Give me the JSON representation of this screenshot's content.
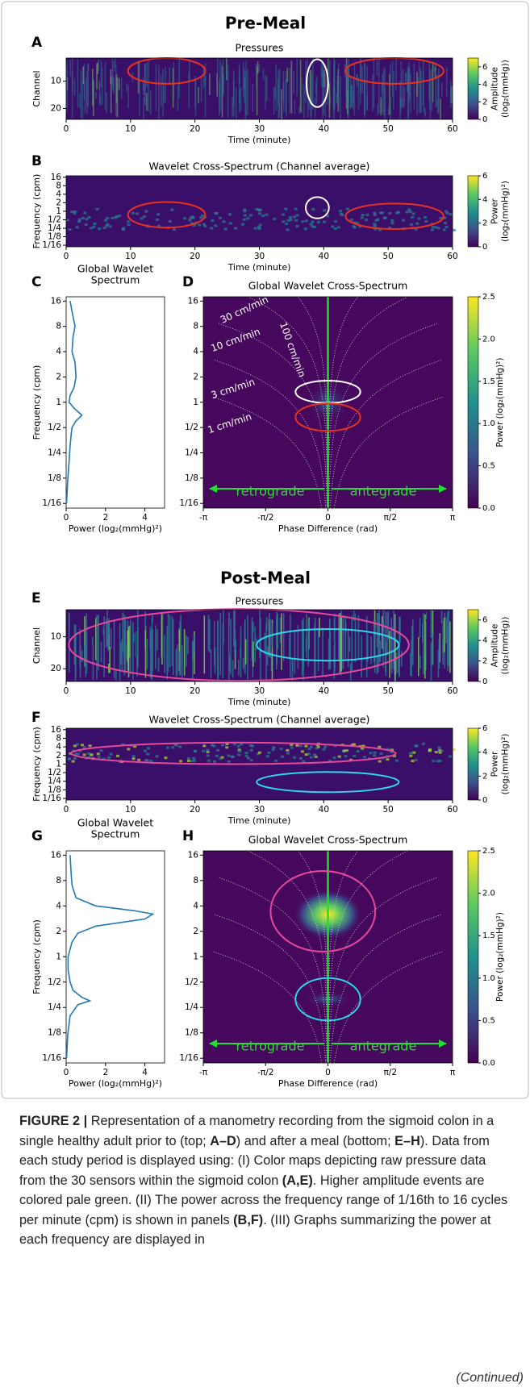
{
  "sections": [
    {
      "title": "Pre-Meal",
      "panels": [
        {
          "letter": "A",
          "type": "heatmap",
          "title": "Pressures",
          "xlabel": "Time (minute)",
          "ylabel": "Channel",
          "xlim": [
            0,
            60
          ],
          "xticks": [
            0,
            10,
            20,
            30,
            40,
            50,
            60
          ],
          "ylim": [
            24,
            1.5
          ],
          "yticks": [
            10,
            20
          ],
          "colorbar": {
            "label": [
              "Amplitude",
              "(log₂(mmHg))"
            ],
            "lim": [
              0,
              7
            ],
            "ticks": [
              0,
              2,
              4,
              6
            ]
          }
        },
        {
          "letter": "B",
          "type": "heatmap",
          "title": "Wavelet Cross-Spectrum (Channel average)",
          "xlabel": "Time (minute)",
          "ylabel": "Frequency (cpm)",
          "xlim": [
            0,
            60
          ],
          "xticks": [
            0,
            10,
            20,
            30,
            40,
            50,
            60
          ],
          "log_y": true,
          "ylim": [
            0.055,
            18
          ],
          "yticks": [
            16,
            8,
            4,
            2,
            1,
            {
              "value": 0.5,
              "label": "1/2"
            },
            {
              "value": 0.25,
              "label": "1/4"
            },
            {
              "value": 0.125,
              "label": "1/8"
            },
            {
              "value": 0.0625,
              "label": "1/16"
            }
          ],
          "colorbar": {
            "label": [
              "Power",
              "(log₂(mmHg)²)"
            ],
            "lim": [
              0,
              6
            ],
            "ticks": [
              0,
              2,
              4,
              6
            ]
          }
        },
        {
          "letter": "C",
          "type": "line",
          "title": [
            "Global Wavelet",
            "Spectrum"
          ],
          "xlabel": "Power (log₂(mmHg)²)",
          "ylabel": "Frequency (cpm)",
          "xlim": [
            0,
            5
          ],
          "xticks": [
            0,
            2,
            4
          ],
          "log_y": true,
          "ylim": [
            0.055,
            18
          ],
          "yticks": [
            16,
            8,
            4,
            2,
            1,
            {
              "value": 0.5,
              "label": "1/2"
            },
            {
              "value": 0.25,
              "label": "1/4"
            },
            {
              "value": 0.125,
              "label": "1/8"
            },
            {
              "value": 0.0625,
              "label": "1/16"
            }
          ],
          "color": "#1f77b4",
          "freq": [
            16,
            12,
            8,
            6,
            4,
            3,
            2,
            1.5,
            1.2,
            1,
            0.85,
            0.7,
            0.6,
            0.5,
            0.4,
            0.3,
            0.2,
            0.12,
            0.0625
          ],
          "power": [
            0.2,
            0.3,
            0.45,
            0.35,
            0.3,
            0.45,
            0.5,
            0.4,
            0.2,
            0.15,
            0.4,
            0.8,
            0.5,
            0.3,
            0.25,
            0.2,
            0.15,
            0.08,
            0.02
          ]
        },
        {
          "letter": "D",
          "type": "phase",
          "title": "Global Wavelet Cross-Spectrum",
          "xlabel": "Phase Difference (rad)",
          "xlim": [
            -3.1416,
            3.1416
          ],
          "xticks": [
            {
              "value": -3.1416,
              "label": "-π"
            },
            {
              "value": -1.5708,
              "label": "-π/2"
            },
            0,
            {
              "value": 1.5708,
              "label": "π/2"
            },
            {
              "value": 3.1416,
              "label": "π"
            }
          ],
          "log_y": true,
          "ylim": [
            0.055,
            18
          ],
          "yticks": [
            16,
            8,
            4,
            2,
            1,
            {
              "value": 0.5,
              "label": "1/2"
            },
            {
              "value": 0.25,
              "label": "1/4"
            },
            {
              "value": 0.125,
              "label": "1/8"
            },
            {
              "value": 0.0625,
              "label": "1/16"
            }
          ],
          "annotations": [
            "30 cm/min",
            "10 cm/min",
            "3 cm/min",
            "1 cm/min",
            "100 cm/min",
            "retrograde",
            "antegrade"
          ],
          "colorbar": {
            "label": [
              "Power (log₂(mmHg)²)"
            ],
            "lim": [
              0,
              2.5
            ],
            "ticks": [
              {
                "value": 0,
                "label": "0.0"
              },
              {
                "value": 0.5,
                "label": "0.5"
              },
              {
                "value": 1,
                "label": "1.0"
              },
              {
                "value": 1.5,
                "label": "1.5"
              },
              {
                "value": 2,
                "label": "2.0"
              },
              {
                "value": 2.5,
                "label": "2.5"
              }
            ]
          }
        }
      ]
    },
    {
      "title": "Post-Meal",
      "panels": [
        {
          "letter": "E",
          "type": "heatmap",
          "title": "Pressures",
          "xlabel": "Time (minute)",
          "ylabel": "Channel",
          "xlim": [
            0,
            60
          ],
          "xticks": [
            0,
            10,
            20,
            30,
            40,
            50,
            60
          ],
          "ylim": [
            24,
            1.5
          ],
          "yticks": [
            10,
            20
          ],
          "colorbar": {
            "label": [
              "Amplitude",
              "(log₂(mmHg))"
            ],
            "lim": [
              0,
              7
            ],
            "ticks": [
              0,
              2,
              4,
              6
            ]
          }
        },
        {
          "letter": "F",
          "type": "heatmap",
          "title": "Wavelet Cross-Spectrum (Channel average)",
          "xlabel": "Time (minute)",
          "ylabel": "Frequency (cpm)",
          "xlim": [
            0,
            60
          ],
          "xticks": [
            0,
            10,
            20,
            30,
            40,
            50,
            60
          ],
          "log_y": true,
          "ylim": [
            0.055,
            18
          ],
          "yticks": [
            16,
            8,
            4,
            2,
            1,
            {
              "value": 0.5,
              "label": "1/2"
            },
            {
              "value": 0.25,
              "label": "1/4"
            },
            {
              "value": 0.125,
              "label": "1/8"
            },
            {
              "value": 0.0625,
              "label": "1/16"
            }
          ],
          "colorbar": {
            "label": [
              "Power",
              "(log₂(mmHg)²)"
            ],
            "lim": [
              0,
              6
            ],
            "ticks": [
              0,
              2,
              4,
              6
            ]
          }
        },
        {
          "letter": "G",
          "type": "line",
          "title": [
            "Global Wavelet",
            "Spectrum"
          ],
          "xlabel": "Power (log₂(mmHg)²)",
          "ylabel": "Frequency (cpm)",
          "xlim": [
            0,
            5
          ],
          "xticks": [
            0,
            2,
            4
          ],
          "log_y": true,
          "ylim": [
            0.055,
            18
          ],
          "yticks": [
            16,
            8,
            4,
            2,
            1,
            {
              "value": 0.5,
              "label": "1/2"
            },
            {
              "value": 0.25,
              "label": "1/4"
            },
            {
              "value": 0.125,
              "label": "1/8"
            },
            {
              "value": 0.0625,
              "label": "1/16"
            }
          ],
          "color": "#1f77b4",
          "freq": [
            16,
            10,
            7,
            5,
            4,
            3.5,
            3.2,
            2.8,
            2.3,
            1.9,
            1.5,
            1,
            0.7,
            0.5,
            0.4,
            0.33,
            0.3,
            0.27,
            0.2,
            0.12,
            0.0625
          ],
          "power": [
            0.2,
            0.25,
            0.3,
            0.5,
            1.5,
            3.5,
            4.4,
            4.0,
            1.5,
            0.6,
            0.3,
            0.1,
            0.1,
            0.2,
            0.35,
            0.8,
            1.2,
            0.6,
            0.2,
            0.08,
            0.02
          ]
        },
        {
          "letter": "H",
          "type": "phase",
          "title": "Global Wavelet Cross-Spectrum",
          "xlabel": "Phase Difference (rad)",
          "xlim": [
            -3.1416,
            3.1416
          ],
          "xticks": [
            {
              "value": -3.1416,
              "label": "-π"
            },
            {
              "value": -1.5708,
              "label": "-π/2"
            },
            0,
            {
              "value": 1.5708,
              "label": "π/2"
            },
            {
              "value": 3.1416,
              "label": "π"
            }
          ],
          "log_y": true,
          "ylim": [
            0.055,
            18
          ],
          "yticks": [
            16,
            8,
            4,
            2,
            1,
            {
              "value": 0.5,
              "label": "1/2"
            },
            {
              "value": 0.25,
              "label": "1/4"
            },
            {
              "value": 0.125,
              "label": "1/8"
            },
            {
              "value": 0.0625,
              "label": "1/16"
            }
          ],
          "annotations": [
            "retrograde",
            "antegrade"
          ],
          "colorbar": {
            "label": [
              "Power (log₂(mmHg)²)"
            ],
            "lim": [
              0,
              2.5
            ],
            "ticks": [
              {
                "value": 0,
                "label": "0.0"
              },
              {
                "value": 0.5,
                "label": "0.5"
              },
              {
                "value": 1,
                "label": "1.0"
              },
              {
                "value": 1.5,
                "label": "1.5"
              },
              {
                "value": 2,
                "label": "2.0"
              },
              {
                "value": 2.5,
                "label": "2.5"
              }
            ]
          }
        }
      ]
    }
  ],
  "caption": {
    "runs": [
      {
        "text": "FIGURE 2 |",
        "bold": true
      },
      {
        "text": " Representation of a manometry recording from the sigmoid colon in a single healthy adult prior to (top; "
      },
      {
        "text": "A–D",
        "bold": true
      },
      {
        "text": ") and after a meal (bottom; "
      },
      {
        "text": "E–H",
        "bold": true
      },
      {
        "text": "). Data from each study period is displayed using: (I) Color maps depicting raw pressure data from the 30 sensors within the sigmoid colon "
      },
      {
        "text": "(A,E)",
        "bold": true
      },
      {
        "text": ". Higher amplitude events are colored pale green. (II) The power across the frequency range of 1/16th to 16 cycles per minute (cpm) is shown in panels "
      },
      {
        "text": "(B,F)",
        "bold": true
      },
      {
        "text": ". (III) Graphs summarizing the power at each frequency are displayed in"
      }
    ],
    "continued": "(Continued)"
  }
}
